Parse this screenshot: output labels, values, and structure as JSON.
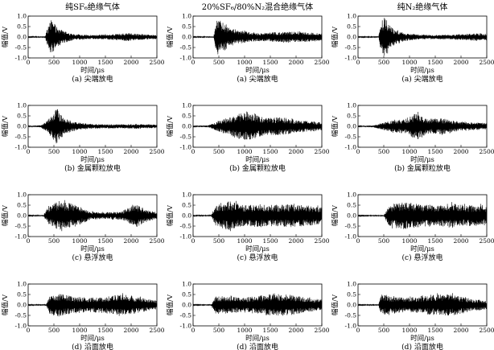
{
  "column_titles": [
    "纯SF₆绝缘气体",
    "20%SF₆/80%N₂混合绝缘气体",
    "纯N₂绝缘气体"
  ],
  "row_captions": [
    "(a) 尖端放电",
    "(b) 金属颗粒放电",
    "(c) 悬浮放电",
    "(d) 沿面放电"
  ],
  "chart_data": {
    "type": "line",
    "xlabel": "时间/μs",
    "ylabel": "幅值/V",
    "xlim": [
      0,
      2500
    ],
    "ylim": [
      -1.0,
      1.0
    ],
    "x_ticks": [
      0,
      500,
      1000,
      1500,
      2000,
      2500
    ],
    "y_ticks": [
      -1.0,
      -0.5,
      0.0,
      0.5,
      1.0
    ],
    "y_tick_labels": [
      "-1.0",
      "-0.5",
      "0.0",
      "0.5",
      "1.0"
    ],
    "panels": [
      {
        "row": 0,
        "col": 0,
        "caption": "(a) 尖端放电",
        "signal": "partial discharge pulse train",
        "envelope": [
          [
            0,
            0.02
          ],
          [
            330,
            0.03
          ],
          [
            380,
            0.45
          ],
          [
            450,
            0.85
          ],
          [
            550,
            0.5
          ],
          [
            700,
            0.28
          ],
          [
            900,
            0.14
          ],
          [
            1200,
            0.1
          ],
          [
            1500,
            0.12
          ],
          [
            1800,
            0.16
          ],
          [
            1950,
            0.2
          ],
          [
            2100,
            0.15
          ],
          [
            2300,
            0.12
          ],
          [
            2500,
            0.1
          ]
        ]
      },
      {
        "row": 0,
        "col": 1,
        "caption": "(a) 尖端放电",
        "signal": "partial discharge pulse train",
        "envelope": [
          [
            0,
            0.02
          ],
          [
            400,
            0.03
          ],
          [
            450,
            0.7
          ],
          [
            520,
            0.85
          ],
          [
            700,
            0.45
          ],
          [
            900,
            0.32
          ],
          [
            1200,
            0.2
          ],
          [
            1500,
            0.22
          ],
          [
            1800,
            0.25
          ],
          [
            2100,
            0.24
          ],
          [
            2400,
            0.2
          ],
          [
            2500,
            0.18
          ]
        ]
      },
      {
        "row": 0,
        "col": 2,
        "caption": "(a) 尖端放电",
        "signal": "partial discharge pulse train",
        "envelope": [
          [
            0,
            0.02
          ],
          [
            400,
            0.03
          ],
          [
            450,
            0.75
          ],
          [
            520,
            0.95
          ],
          [
            650,
            0.45
          ],
          [
            900,
            0.2
          ],
          [
            1200,
            0.12
          ],
          [
            1500,
            0.1
          ],
          [
            1800,
            0.12
          ],
          [
            2100,
            0.15
          ],
          [
            2300,
            0.18
          ],
          [
            2500,
            0.15
          ]
        ]
      },
      {
        "row": 1,
        "col": 0,
        "caption": "(b) 金属颗粒放电",
        "signal": "partial discharge pulse train",
        "envelope": [
          [
            0,
            0.02
          ],
          [
            250,
            0.05
          ],
          [
            400,
            0.35
          ],
          [
            550,
            0.85
          ],
          [
            700,
            0.4
          ],
          [
            900,
            0.2
          ],
          [
            1200,
            0.12
          ],
          [
            1500,
            0.1
          ],
          [
            1800,
            0.1
          ],
          [
            2100,
            0.12
          ],
          [
            2500,
            0.08
          ]
        ]
      },
      {
        "row": 1,
        "col": 1,
        "caption": "(b) 金属颗粒放电",
        "signal": "partial discharge pulse train",
        "envelope": [
          [
            0,
            0.02
          ],
          [
            300,
            0.05
          ],
          [
            500,
            0.25
          ],
          [
            800,
            0.55
          ],
          [
            1100,
            0.75
          ],
          [
            1400,
            0.4
          ],
          [
            1700,
            0.45
          ],
          [
            2000,
            0.3
          ],
          [
            2300,
            0.25
          ],
          [
            2500,
            0.2
          ]
        ]
      },
      {
        "row": 1,
        "col": 2,
        "caption": "(b) 金属颗粒放电",
        "signal": "partial discharge pulse train",
        "envelope": [
          [
            0,
            0.02
          ],
          [
            300,
            0.05
          ],
          [
            600,
            0.25
          ],
          [
            900,
            0.35
          ],
          [
            1150,
            0.65
          ],
          [
            1350,
            0.35
          ],
          [
            1600,
            0.4
          ],
          [
            1900,
            0.25
          ],
          [
            2200,
            0.2
          ],
          [
            2500,
            0.15
          ]
        ]
      },
      {
        "row": 2,
        "col": 0,
        "caption": "(c) 悬浮放电",
        "signal": "partial discharge pulse train",
        "envelope": [
          [
            0,
            0.02
          ],
          [
            300,
            0.03
          ],
          [
            400,
            0.45
          ],
          [
            600,
            0.7
          ],
          [
            900,
            0.55
          ],
          [
            1200,
            0.2
          ],
          [
            1500,
            0.15
          ],
          [
            1800,
            0.2
          ],
          [
            2100,
            0.55
          ],
          [
            2300,
            0.3
          ],
          [
            2500,
            0.15
          ]
        ]
      },
      {
        "row": 2,
        "col": 1,
        "caption": "(c) 悬浮放电",
        "signal": "partial discharge pulse train",
        "envelope": [
          [
            0,
            0.02
          ],
          [
            350,
            0.03
          ],
          [
            450,
            0.55
          ],
          [
            700,
            0.7
          ],
          [
            1000,
            0.5
          ],
          [
            1300,
            0.55
          ],
          [
            1600,
            0.5
          ],
          [
            1900,
            0.55
          ],
          [
            2200,
            0.5
          ],
          [
            2500,
            0.4
          ]
        ]
      },
      {
        "row": 2,
        "col": 2,
        "caption": "(c) 悬浮放电",
        "signal": "partial discharge pulse train",
        "envelope": [
          [
            0,
            0.02
          ],
          [
            500,
            0.03
          ],
          [
            600,
            0.5
          ],
          [
            900,
            0.65
          ],
          [
            1200,
            0.55
          ],
          [
            1500,
            0.5
          ],
          [
            1800,
            0.6
          ],
          [
            2100,
            0.5
          ],
          [
            2400,
            0.5
          ],
          [
            2500,
            0.45
          ]
        ]
      },
      {
        "row": 3,
        "col": 0,
        "caption": "(d) 沿面放电",
        "signal": "partial discharge pulse train",
        "envelope": [
          [
            0,
            0.02
          ],
          [
            350,
            0.03
          ],
          [
            420,
            0.5
          ],
          [
            600,
            0.55
          ],
          [
            900,
            0.4
          ],
          [
            1200,
            0.35
          ],
          [
            1500,
            0.4
          ],
          [
            1800,
            0.5
          ],
          [
            2000,
            0.45
          ],
          [
            2300,
            0.3
          ],
          [
            2500,
            0.2
          ]
        ]
      },
      {
        "row": 3,
        "col": 1,
        "caption": "(d) 沿面放电",
        "signal": "partial discharge pulse train",
        "envelope": [
          [
            0,
            0.02
          ],
          [
            350,
            0.03
          ],
          [
            450,
            0.45
          ],
          [
            700,
            0.4
          ],
          [
            1000,
            0.35
          ],
          [
            1300,
            0.45
          ],
          [
            1600,
            0.55
          ],
          [
            1900,
            0.5
          ],
          [
            2200,
            0.35
          ],
          [
            2500,
            0.25
          ]
        ]
      },
      {
        "row": 3,
        "col": 2,
        "caption": "(d) 沿面放电",
        "signal": "partial discharge pulse train",
        "envelope": [
          [
            0,
            0.02
          ],
          [
            400,
            0.03
          ],
          [
            450,
            0.5
          ],
          [
            700,
            0.4
          ],
          [
            1000,
            0.35
          ],
          [
            1300,
            0.45
          ],
          [
            1600,
            0.5
          ],
          [
            1900,
            0.5
          ],
          [
            2200,
            0.3
          ],
          [
            2500,
            0.2
          ]
        ]
      }
    ]
  }
}
